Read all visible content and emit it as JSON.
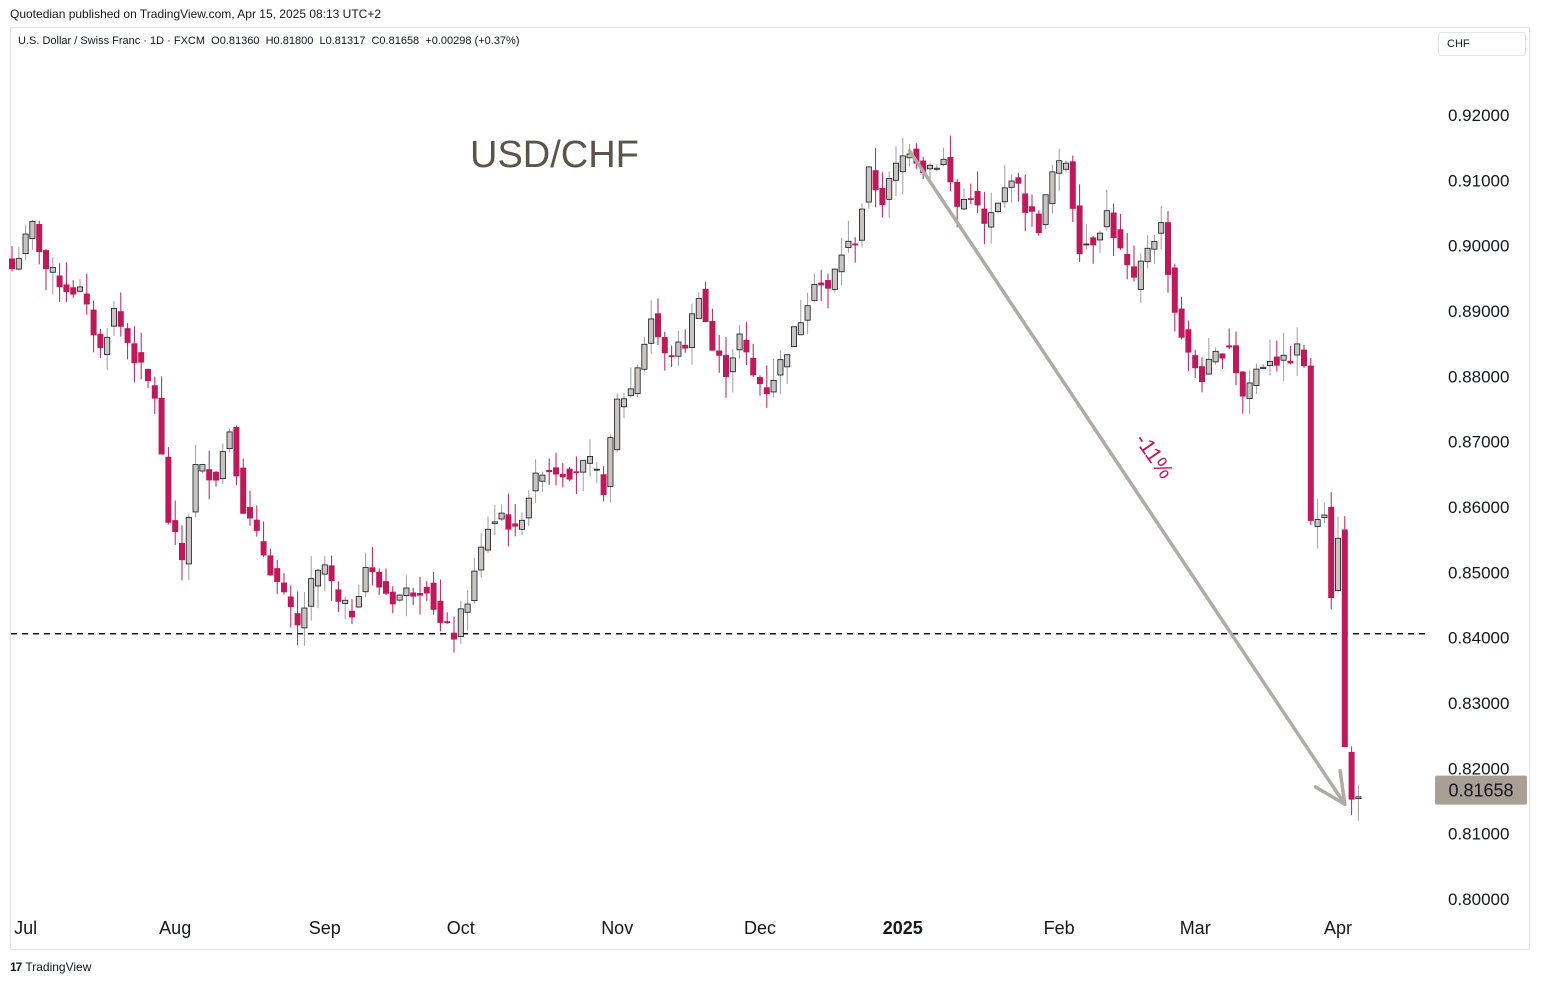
{
  "header": {
    "published": "Quotedian published on TradingView.com, Apr 15, 2025 08:13 UTC+2"
  },
  "symbol": {
    "name": "U.S. Dollar / Swiss Franc · 1D · FXCM",
    "open": "O0.81360",
    "high": "H0.81800",
    "low": "L0.81317",
    "close": "C0.81658",
    "change": "+0.00298 (+0.37%)",
    "currency": "CHF"
  },
  "footer": {
    "brand": "TradingView",
    "mark": "17"
  },
  "colors": {
    "up": "#9e9e9e",
    "down": "#c2185b",
    "arrow": "#b0aba3",
    "annotation": "#c2185b",
    "title": "#5d5448",
    "price_tag": "#a99f94"
  },
  "chart_data": {
    "type": "candlestick",
    "title": "USD/CHF",
    "ylim": [
      0.798,
      0.922
    ],
    "y_ticks": [
      "0.92000",
      "0.91000",
      "0.90000",
      "0.89000",
      "0.88000",
      "0.87000",
      "0.86000",
      "0.85000",
      "0.84000",
      "0.83000",
      "0.82000",
      "0.81000",
      "0.80000"
    ],
    "x_labels": [
      {
        "label": "Jul",
        "index": 2,
        "bold": false
      },
      {
        "label": "Aug",
        "index": 24,
        "bold": false
      },
      {
        "label": "Sep",
        "index": 46,
        "bold": false
      },
      {
        "label": "Oct",
        "index": 66,
        "bold": false
      },
      {
        "label": "Nov",
        "index": 89,
        "bold": false
      },
      {
        "label": "Dec",
        "index": 110,
        "bold": false
      },
      {
        "label": "2025",
        "index": 131,
        "bold": true
      },
      {
        "label": "Feb",
        "index": 154,
        "bold": false
      },
      {
        "label": "Mar",
        "index": 174,
        "bold": false
      },
      {
        "label": "Apr",
        "index": 195,
        "bold": false
      }
    ],
    "last_price": "0.81658",
    "last_value": 0.81658,
    "support_level": 0.8406,
    "annotation": {
      "text": "-11%",
      "x_index": 165,
      "y_value": 0.8703
    },
    "arrow": {
      "from_index": 132,
      "from_value": 0.9145,
      "to_index": 196,
      "to_value": 0.8145
    },
    "key_points": [
      [
        0,
        0.8965
      ],
      [
        3,
        0.903
      ],
      [
        5,
        0.8965
      ],
      [
        8,
        0.8935
      ],
      [
        10,
        0.893
      ],
      [
        13,
        0.884
      ],
      [
        15,
        0.89
      ],
      [
        18,
        0.883
      ],
      [
        21,
        0.877
      ],
      [
        23,
        0.858
      ],
      [
        25,
        0.852
      ],
      [
        27,
        0.866
      ],
      [
        30,
        0.865
      ],
      [
        32,
        0.872
      ],
      [
        34,
        0.86
      ],
      [
        37,
        0.853
      ],
      [
        40,
        0.846
      ],
      [
        42,
        0.8415
      ],
      [
        44,
        0.848
      ],
      [
        46,
        0.851
      ],
      [
        48,
        0.845
      ],
      [
        50,
        0.844
      ],
      [
        52,
        0.851
      ],
      [
        54,
        0.848
      ],
      [
        56,
        0.846
      ],
      [
        58,
        0.847
      ],
      [
        61,
        0.848
      ],
      [
        63,
        0.842
      ],
      [
        65,
        0.8405
      ],
      [
        67,
        0.846
      ],
      [
        70,
        0.857
      ],
      [
        72,
        0.859
      ],
      [
        74,
        0.856
      ],
      [
        76,
        0.862
      ],
      [
        78,
        0.866
      ],
      [
        82,
        0.8655
      ],
      [
        85,
        0.8665
      ],
      [
        87,
        0.863
      ],
      [
        89,
        0.876
      ],
      [
        91,
        0.878
      ],
      [
        94,
        0.889
      ],
      [
        96,
        0.883
      ],
      [
        99,
        0.885
      ],
      [
        101,
        0.893
      ],
      [
        103,
        0.884
      ],
      [
        105,
        0.881
      ],
      [
        107,
        0.886
      ],
      [
        109,
        0.88
      ],
      [
        111,
        0.878
      ],
      [
        113,
        0.882
      ],
      [
        116,
        0.889
      ],
      [
        118,
        0.895
      ],
      [
        120,
        0.893
      ],
      [
        122,
        0.899
      ],
      [
        124,
        0.901
      ],
      [
        126,
        0.911
      ],
      [
        128,
        0.907
      ],
      [
        130,
        0.912
      ],
      [
        132,
        0.915
      ],
      [
        134,
        0.912
      ],
      [
        137,
        0.913
      ],
      [
        139,
        0.906
      ],
      [
        141,
        0.908
      ],
      [
        143,
        0.903
      ],
      [
        145,
        0.906
      ],
      [
        147,
        0.911
      ],
      [
        149,
        0.906
      ],
      [
        151,
        0.903
      ],
      [
        153,
        0.911
      ],
      [
        155,
        0.913
      ],
      [
        157,
        0.9
      ],
      [
        159,
        0.901
      ],
      [
        161,
        0.905
      ],
      [
        163,
        0.899
      ],
      [
        165,
        0.894
      ],
      [
        167,
        0.9
      ],
      [
        169,
        0.903
      ],
      [
        171,
        0.89
      ],
      [
        173,
        0.883
      ],
      [
        175,
        0.88
      ],
      [
        177,
        0.883
      ],
      [
        179,
        0.885
      ],
      [
        181,
        0.877
      ],
      [
        183,
        0.881
      ],
      [
        185,
        0.883
      ],
      [
        187,
        0.882
      ],
      [
        189,
        0.884
      ],
      [
        190,
        0.882
      ],
      [
        191,
        0.857
      ],
      [
        193,
        0.86
      ],
      [
        194,
        0.847
      ],
      [
        195,
        0.856
      ],
      [
        196,
        0.823
      ],
      [
        197,
        0.815
      ],
      [
        198,
        0.8166
      ]
    ]
  }
}
